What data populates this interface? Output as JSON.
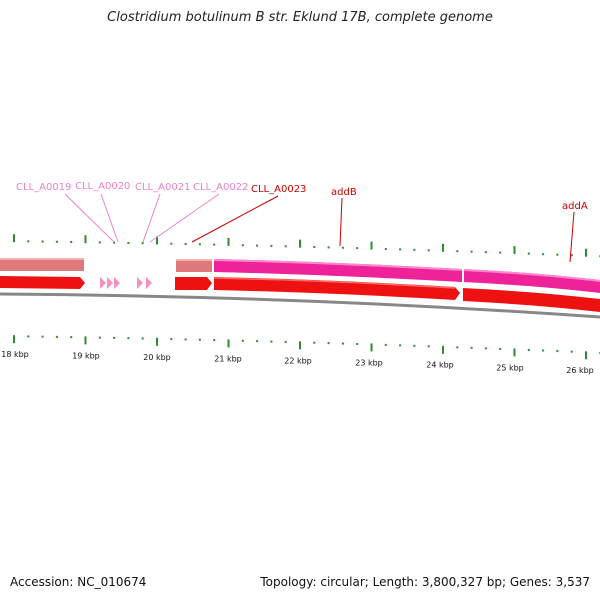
{
  "title": "Clostridium botulinum B str. Eklund 17B, complete genome",
  "footer": {
    "accession": "Accession: NC_010674",
    "topology": "Topology: circular; Length: 3,800,327 bp; Genes: 3,537"
  },
  "colors": {
    "tick": "#2e8b2e",
    "label_pink": "#ee82c8",
    "label_red": "#cc0000",
    "cds_red": "#ee1111",
    "cds_salmon": "#e07a7a",
    "cds_magenta": "#ee2299",
    "backbone": "#888888"
  },
  "scale": {
    "labels": [
      "18 kbp",
      "19 kbp",
      "20 kbp",
      "21 kbp",
      "22 kbp",
      "23 kbp",
      "24 kbp",
      "25 kbp",
      "26 kbp"
    ]
  },
  "genes": [
    {
      "name": "CLL_A0019",
      "kind": "locus_tag"
    },
    {
      "name": "CLL_A0020",
      "kind": "locus_tag"
    },
    {
      "name": "CLL_A0021",
      "kind": "locus_tag"
    },
    {
      "name": "CLL_A0022",
      "kind": "locus_tag"
    },
    {
      "name": "CLL_A0023",
      "kind": "locus_tag"
    },
    {
      "name": "addB",
      "kind": "gene"
    },
    {
      "name": "addA",
      "kind": "gene"
    }
  ]
}
